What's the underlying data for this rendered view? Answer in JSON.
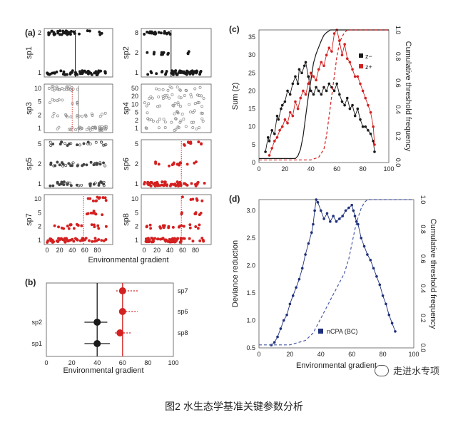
{
  "caption": "图2  水生态学基准关键参数分析",
  "watermark": "走进水专项",
  "colors": {
    "black": "#1a1a1a",
    "gray": "#888888",
    "red": "#d42020",
    "blue": "#1e2f7c",
    "blue_dash": "#4a5aa8"
  },
  "chart_data": [
    {
      "type": "scatter",
      "panel_label": "(a)",
      "xlabel": "Environmental gradient",
      "x_ticks": [
        0,
        20,
        40,
        60,
        80
      ],
      "xlim": [
        0,
        100
      ],
      "species": [
        {
          "name": "sp1",
          "color": "#1a1a1a",
          "threshold": 45,
          "threshold_style": "solid",
          "y_ticks": [
            "1",
            "2"
          ],
          "points": "dense-low then sparse"
        },
        {
          "name": "sp2",
          "color": "#1a1a1a",
          "threshold": 42,
          "threshold_style": "solid",
          "y_ticks": [
            "1",
            "2",
            "8"
          ],
          "points": "dense-low then sparse"
        },
        {
          "name": "sp3",
          "color": "#888888",
          "threshold": 50,
          "threshold_style": "solid",
          "y_ticks": [
            "1",
            "2",
            "5",
            "10"
          ]
        },
        {
          "name": "sp4",
          "color": "#888888",
          "threshold": null,
          "y_ticks": [
            "1",
            "2",
            "5",
            "10",
            "20",
            "50"
          ]
        },
        {
          "name": "sp5",
          "color": "#444444",
          "threshold": null,
          "y_ticks": [
            "1",
            "2",
            "5"
          ]
        },
        {
          "name": "sp6",
          "color": "#d42020",
          "threshold": 58,
          "threshold_style": "dotted",
          "y_ticks": [
            "1",
            "2",
            "5"
          ]
        },
        {
          "name": "sp7",
          "color": "#d42020",
          "threshold": 58,
          "threshold_style": "dotted",
          "y_ticks": [
            "1",
            "2",
            "5",
            "10"
          ]
        },
        {
          "name": "sp8",
          "color": "#d42020",
          "threshold": 58,
          "threshold_style": "dotted",
          "y_ticks": [
            "1",
            "2",
            "5",
            "10"
          ]
        }
      ]
    },
    {
      "type": "scatter",
      "panel_label": "(b)",
      "xlabel": "Environmental gradient",
      "x_ticks": [
        0,
        20,
        40,
        60,
        80,
        100
      ],
      "xlim": [
        0,
        100
      ],
      "left_labels": [
        "sp2",
        "sp1"
      ],
      "right_labels": [
        "sp7",
        "sp6",
        "sp8"
      ],
      "points": [
        {
          "name": "sp1",
          "x": 40,
          "lo": 30,
          "hi": 50,
          "color": "#1a1a1a"
        },
        {
          "name": "sp2",
          "x": 40,
          "lo": 30,
          "hi": 48,
          "color": "#1a1a1a"
        },
        {
          "name": "sp7",
          "x": 60,
          "lo": 55,
          "hi": 72,
          "color": "#d42020"
        },
        {
          "name": "sp6",
          "x": 60,
          "lo": 58,
          "hi": 72,
          "color": "#d42020"
        },
        {
          "name": "sp8",
          "x": 58,
          "lo": 54,
          "hi": 67,
          "color": "#d42020"
        }
      ],
      "vlines": [
        {
          "x": 40,
          "color": "#1a1a1a"
        },
        {
          "x": 60,
          "color": "#d42020"
        }
      ]
    },
    {
      "type": "line",
      "panel_label": "(c)",
      "ylabel": "Sum (z)",
      "y2label": "Cumulative threshold frequency",
      "x_ticks": [
        0,
        20,
        40,
        60,
        80,
        100
      ],
      "y_ticks": [
        0,
        5,
        10,
        15,
        20,
        25,
        30,
        35
      ],
      "y2_ticks": [
        "0.0",
        "0.2",
        "0.4",
        "0.6",
        "0.8",
        "1.0"
      ],
      "xlim": [
        0,
        100
      ],
      "ylim": [
        0,
        37
      ],
      "y2lim": [
        0,
        1
      ],
      "legend": [
        "z−",
        "z+"
      ],
      "series": [
        {
          "name": "z−",
          "color": "#1a1a1a",
          "x": [
            5,
            7,
            8,
            10,
            12,
            14,
            15,
            17,
            18,
            20,
            22,
            24,
            26,
            28,
            30,
            31,
            33,
            35,
            36,
            38,
            40,
            42,
            44,
            46,
            48,
            50,
            52,
            54,
            56,
            58,
            60,
            62,
            64,
            66,
            68,
            70,
            72,
            74,
            76,
            78,
            80,
            82,
            84,
            86,
            88,
            89
          ],
          "y": [
            3,
            7,
            6,
            9,
            8,
            13,
            12,
            15,
            16,
            17,
            20,
            19,
            22,
            24,
            22,
            26,
            25,
            27,
            28,
            24,
            20,
            19,
            21,
            20,
            19,
            21,
            20,
            22,
            21,
            20,
            22,
            19,
            17,
            16,
            18,
            15,
            16,
            13,
            15,
            12,
            10,
            10,
            9,
            8,
            6,
            3
          ]
        },
        {
          "name": "z+",
          "color": "#d42020",
          "x": [
            8,
            10,
            12,
            14,
            16,
            18,
            20,
            22,
            24,
            26,
            28,
            30,
            32,
            34,
            36,
            38,
            40,
            42,
            44,
            46,
            48,
            50,
            52,
            54,
            56,
            58,
            60,
            62,
            64,
            66,
            68,
            70,
            72,
            74,
            76,
            78,
            80,
            82,
            84,
            86,
            88,
            89
          ],
          "y": [
            2,
            4,
            6,
            7,
            9,
            10,
            12,
            11,
            14,
            13,
            17,
            15,
            18,
            20,
            19,
            22,
            25,
            24,
            23,
            26,
            28,
            27,
            30,
            32,
            31,
            36,
            37,
            34,
            30,
            33,
            29,
            28,
            26,
            24,
            24,
            22,
            20,
            18,
            16,
            14,
            10,
            5
          ]
        },
        {
          "name": "black-cfreq",
          "color": "#1a1a1a",
          "axis": "y2",
          "x": [
            0,
            28,
            30,
            32,
            34,
            36,
            38,
            40,
            42,
            44,
            46,
            48,
            50,
            52,
            55,
            60,
            70,
            100
          ],
          "y": [
            0.03,
            0.03,
            0.05,
            0.1,
            0.2,
            0.35,
            0.5,
            0.62,
            0.75,
            0.82,
            0.87,
            0.92,
            0.96,
            0.98,
            1.0,
            1.0,
            1.0,
            1.0
          ]
        },
        {
          "name": "red-cfreq",
          "color": "#d42020",
          "axis": "y2",
          "dashed": true,
          "x": [
            0,
            40,
            46,
            50,
            52,
            54,
            56,
            58,
            60,
            62,
            64,
            66,
            68,
            70,
            100
          ],
          "y": [
            0.02,
            0.02,
            0.04,
            0.1,
            0.2,
            0.35,
            0.5,
            0.65,
            0.8,
            0.9,
            0.95,
            0.98,
            1.0,
            1.0,
            1.0
          ]
        }
      ]
    },
    {
      "type": "line",
      "panel_label": "(d)",
      "xlabel": "Environmental gradient",
      "ylabel": "Deviance reduction",
      "y2label": "Cumulative threshold frequency",
      "x_ticks": [
        0,
        20,
        40,
        60,
        80,
        100
      ],
      "y_ticks": [
        "0.5",
        "1.0",
        "1.5",
        "2.0",
        "2.5",
        "3.0"
      ],
      "y2_ticks": [
        "0.0",
        "0.2",
        "0.4",
        "0.6",
        "0.8",
        "1.0"
      ],
      "xlim": [
        0,
        100
      ],
      "ylim": [
        0.5,
        3.2
      ],
      "y2lim": [
        0,
        1
      ],
      "legend": [
        "nCPA (BC)"
      ],
      "series": [
        {
          "name": "nCPA (BC)",
          "color": "#1e2f7c",
          "x": [
            8,
            10,
            12,
            14,
            16,
            18,
            20,
            22,
            24,
            26,
            28,
            30,
            32,
            34,
            35,
            36,
            37,
            38,
            40,
            42,
            44,
            46,
            48,
            50,
            52,
            54,
            56,
            58,
            60,
            61,
            62,
            63,
            64,
            66,
            68,
            70,
            72,
            74,
            76,
            78,
            80,
            82,
            84,
            86,
            88
          ],
          "y": [
            0.55,
            0.6,
            0.7,
            0.85,
            1.0,
            1.1,
            1.3,
            1.45,
            1.6,
            1.75,
            1.95,
            2.2,
            2.4,
            2.6,
            2.75,
            3.0,
            3.2,
            3.15,
            3.0,
            2.85,
            2.95,
            2.8,
            2.9,
            2.8,
            2.85,
            2.9,
            3.0,
            3.05,
            3.1,
            3.0,
            2.9,
            2.8,
            2.75,
            2.5,
            2.35,
            2.2,
            2.1,
            1.95,
            1.8,
            1.65,
            1.45,
            1.3,
            1.1,
            0.95,
            0.8
          ]
        },
        {
          "name": "cfreq",
          "color": "#4a5aa8",
          "axis": "y2",
          "dashed": true,
          "x": [
            0,
            20,
            30,
            35,
            40,
            45,
            50,
            55,
            58,
            60,
            62,
            64,
            66,
            68,
            70,
            100
          ],
          "y": [
            0.02,
            0.02,
            0.05,
            0.1,
            0.2,
            0.3,
            0.4,
            0.5,
            0.6,
            0.7,
            0.8,
            0.88,
            0.94,
            0.98,
            1.0,
            1.0
          ]
        }
      ]
    }
  ]
}
